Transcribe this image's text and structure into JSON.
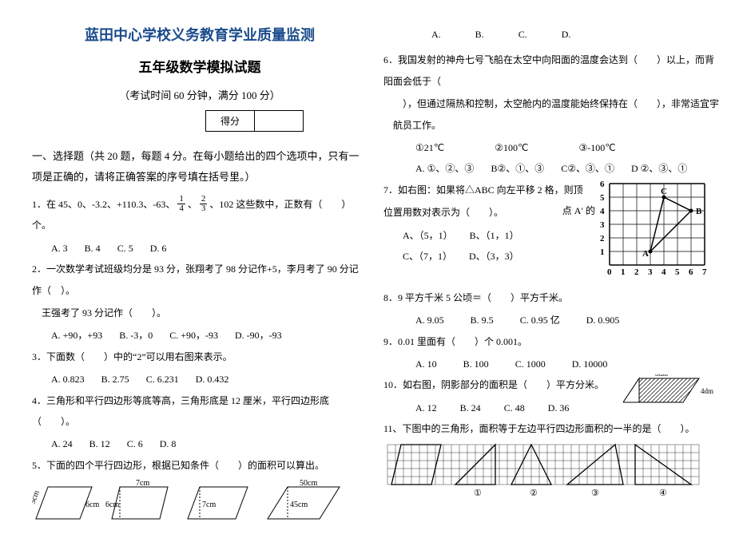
{
  "header": {
    "title1": "蓝田中心学校义务教育学业质量监测",
    "title2": "五年级数学模拟试题",
    "title3": "（考试时间 60 分钟，满分 100 分）",
    "score_label": "得分"
  },
  "section1": {
    "head": "一、选择题（共 20 题，每题 4 分。在每小题给出的四个选项中，只有一项是正确的，请将正确答案的序号填在括号里。）"
  },
  "q1": {
    "stem_a": "1．在 45、0、-3.2、+110.3、-63、",
    "frac1_num": "1",
    "frac1_den": "4",
    "stem_b": "、",
    "frac2_num": "2",
    "frac2_den": "3",
    "stem_c": "、102 这些数中，正数有（　　）个。",
    "a": "A. 3",
    "b": "B. 4",
    "c": "C. 5",
    "d": "D. 6"
  },
  "q2": {
    "stem1": "2．一次数学考试班级均分是 93 分，张翔考了 98 分记作+5，李月考了 90 分记作（　）。",
    "stem2": "王强考了 93 分记作（　　）。",
    "a": "A. +90，+93",
    "b": "B. -3，0",
    "c": "C. +90，-93",
    "d": "D. -90，-93"
  },
  "q3": {
    "stem": "3．下面数（　　）中的“2”可以用右图来表示。",
    "a": "A. 0.823",
    "b": "B. 2.75",
    "c": "C. 6.231",
    "d": "D. 0.432"
  },
  "q4": {
    "stem": "4．三角形和平行四边形等底等高，三角形底是 12 厘米，平行四边形底（　　）。",
    "a": "A. 24",
    "b": "B. 12",
    "c": "C. 6",
    "d": "D. 8"
  },
  "q5": {
    "stem": "5．下面的四个平行四边形，根据已知条件（　　）的面积可以算出。",
    "a": "A.",
    "b": "B.",
    "c": "C.",
    "d": "D.",
    "p1_left": "5cm",
    "p1_right": "6cm",
    "p2_side": "6cm",
    "p2_top": "7cm",
    "p3_side": "7cm",
    "p4_top": "50cm",
    "p4_side": "45cm"
  },
  "q6": {
    "stem1": "6．我国发射的神舟七号飞船在太空中向阳面的温度会达到（　　）以上，而背阳面会低于（",
    "stem2": "　），但通过隔热和控制，太空舱内的温度能始终保持在（　　），非常适宜宇航员工作。",
    "o1": "①21℃",
    "o2": "②100℃",
    "o3": "③-100℃",
    "a": "A. ①、②、③",
    "b": "B②、①、③",
    "c": "C②、③、①",
    "d": "D ②、③、①"
  },
  "q7": {
    "stem1": "7．如右图：如果将△ABC 向左平移 2 格，则顶",
    "stem1b": "点 A′ 的",
    "stem2": "位置用数对表示为（　　）。",
    "a": "A、（5，1）",
    "b": "B、（1，1）",
    "c": "C、（7，1）",
    "d": "D、（3，3）",
    "grid": {
      "xmax": 7,
      "ymax": 6,
      "A": [
        3,
        1
      ],
      "B": [
        6,
        4
      ],
      "C": [
        4,
        5
      ],
      "labelA": "A",
      "labelB": "B",
      "labelC": "C",
      "xticks": [
        "0",
        "1",
        "2",
        "3",
        "4",
        "5",
        "6",
        "7"
      ],
      "yticks": [
        "1",
        "2",
        "3",
        "4",
        "5",
        "6"
      ]
    }
  },
  "q8": {
    "stem": "8．9 平方千米 5 公顷＝（　　）平方千米。",
    "a": "A. 9.05",
    "b": "B. 9.5",
    "c": "C. 0.95 亿",
    "d": "D. 0.905"
  },
  "q9": {
    "stem": "9．0.01 里面有（　　）个 0.001。",
    "a": "A. 10",
    "b": "B. 100",
    "c": "C. 1000",
    "d": "D. 10000"
  },
  "q10": {
    "stem": "10．如右图，阴影部分的面积是（　　）平方分米。",
    "top": "8dm",
    "side": "4dm",
    "a": "A. 12",
    "b": "B. 24",
    "c": "C. 48",
    "d": "D. 36"
  },
  "q11": {
    "stem": "11、下图中的三角形，面积等于左边平行四边形面积的一半的是（　　）。",
    "n1": "①",
    "n2": "②",
    "n3": "③",
    "n4": "④"
  },
  "style": {
    "stroke": "#000000",
    "hatch": "#000000",
    "grid_cell": 17
  }
}
